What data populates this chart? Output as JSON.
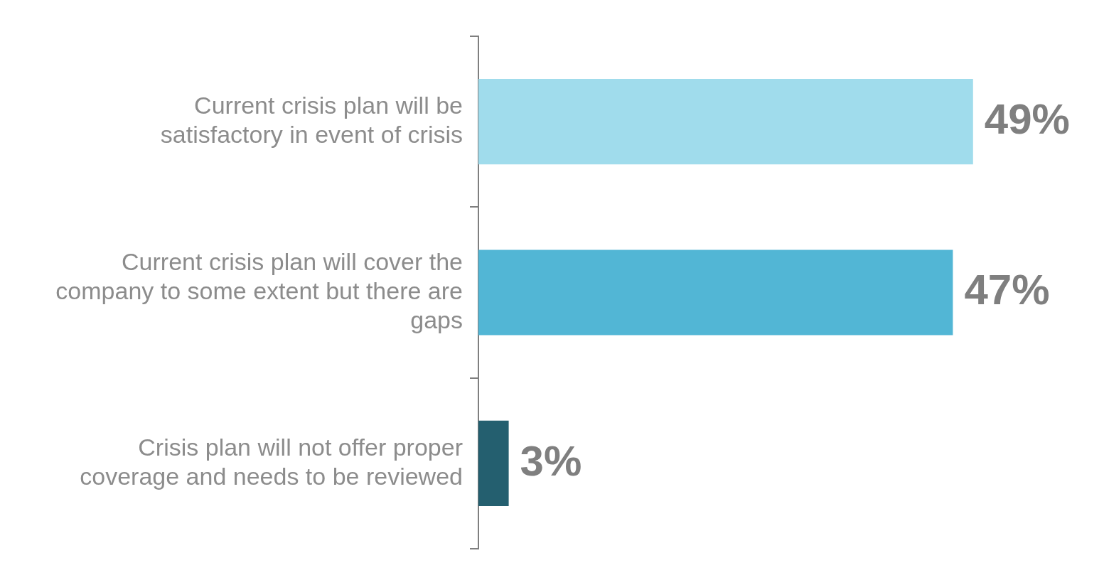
{
  "chart_data": {
    "type": "bar",
    "orientation": "horizontal",
    "categories": [
      "Current crisis plan will be satisfactory in event of crisis",
      "Current crisis plan will cover the company to some extent but there are gaps",
      "Crisis plan will not offer proper coverage and needs to be reviewed"
    ],
    "values": [
      49,
      47,
      3
    ],
    "colors": [
      "#a0dcec",
      "#52b6d5",
      "#245f6f"
    ],
    "value_labels": [
      "49%",
      "47%",
      "3%"
    ],
    "legend": false
  }
}
